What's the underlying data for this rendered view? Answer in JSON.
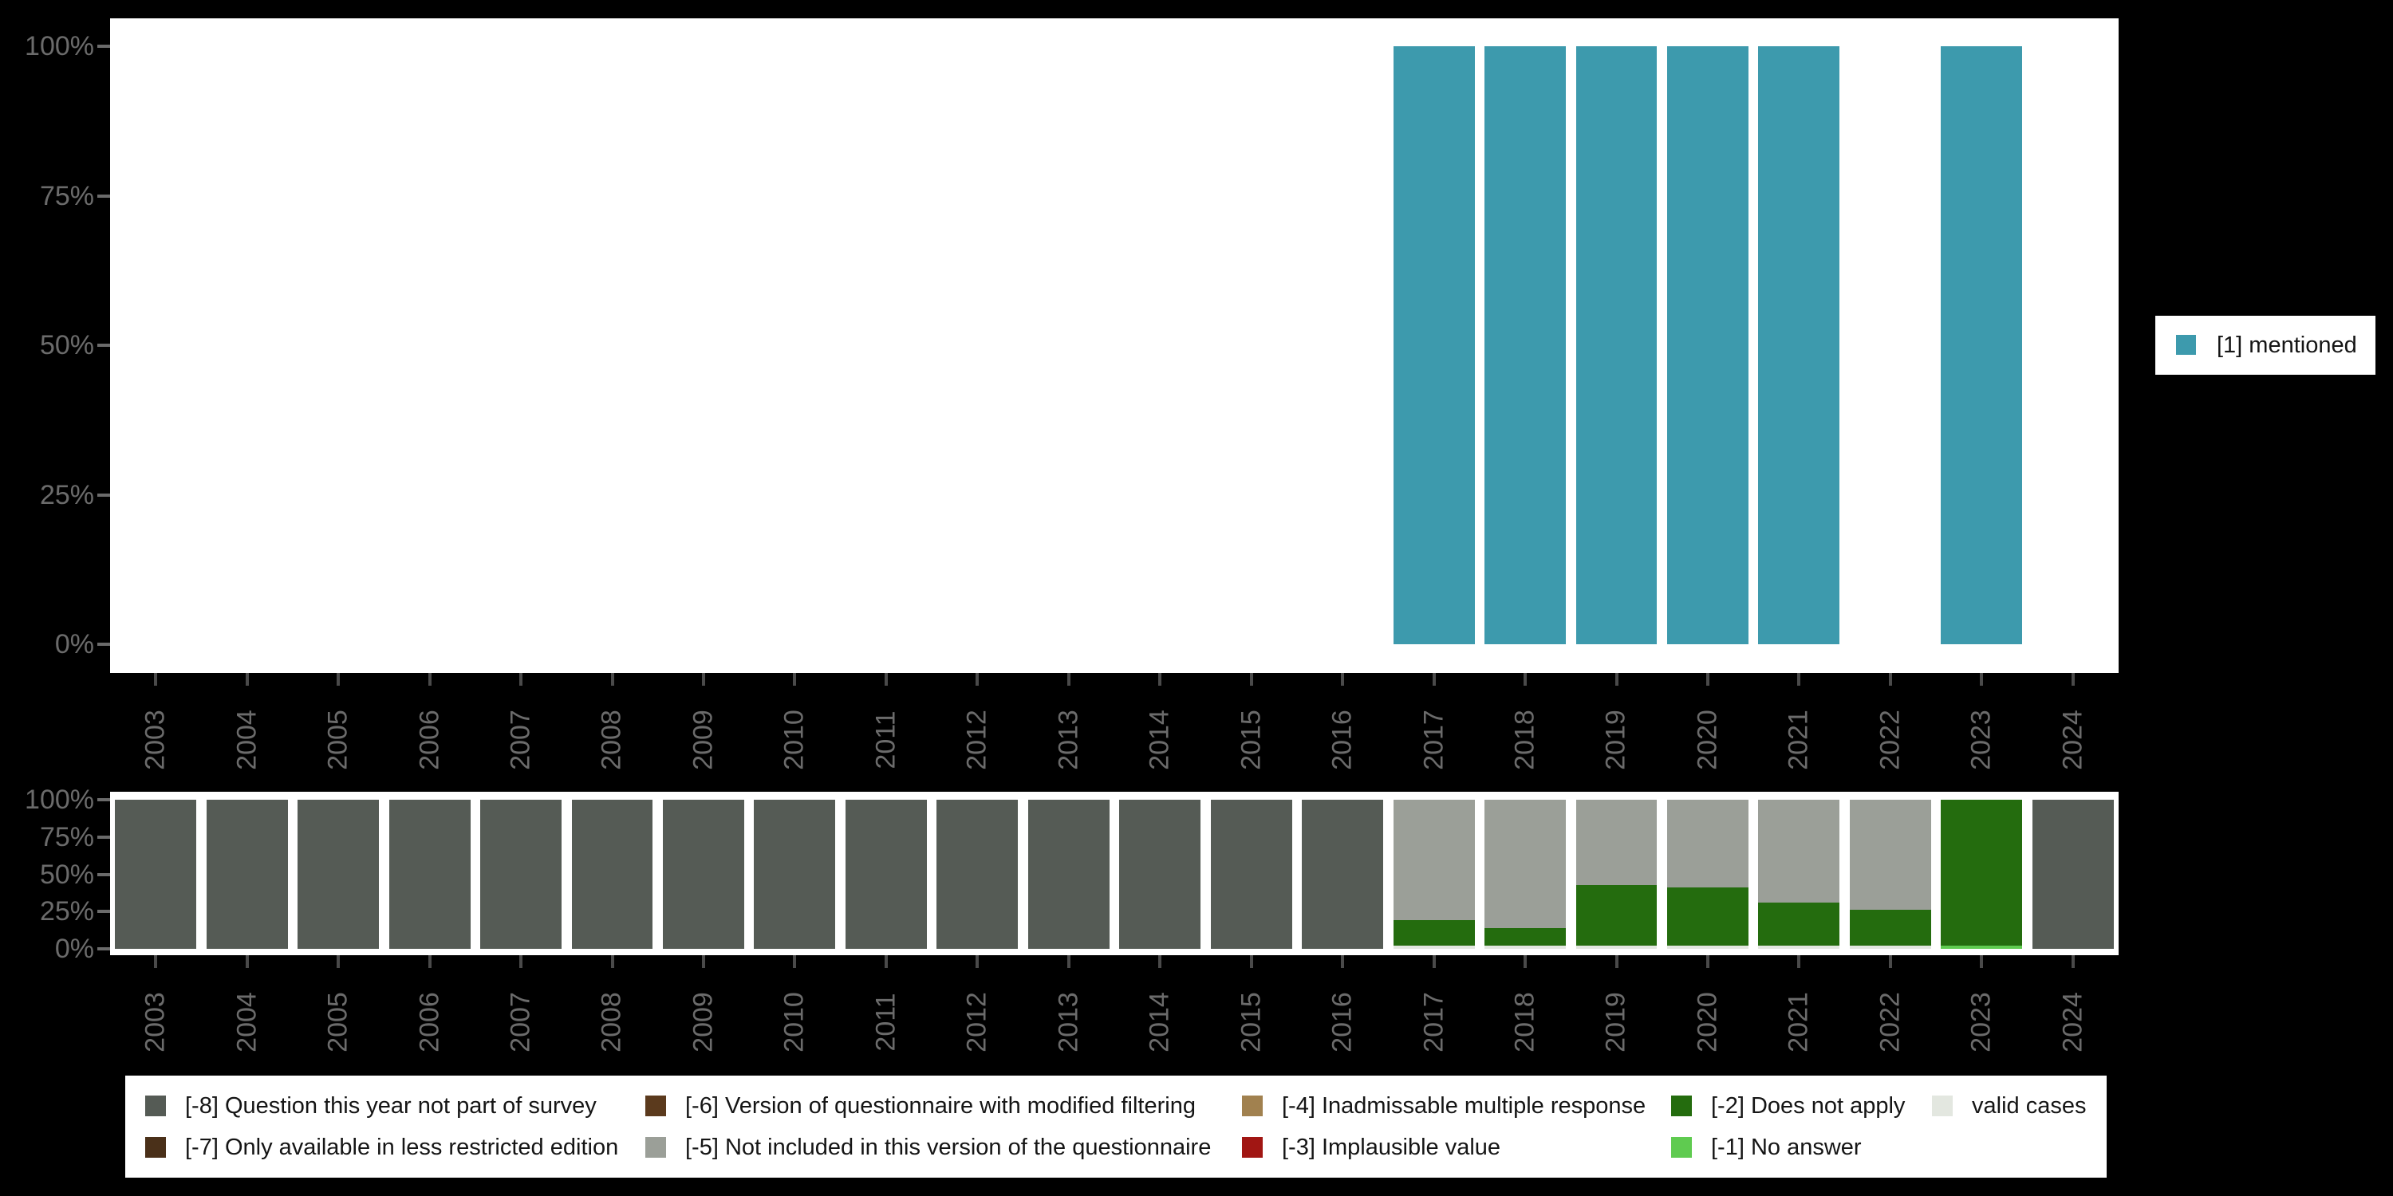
{
  "colors": {
    "background": "#000000",
    "plot_background": "#ffffff",
    "axis_label": "#6b6b6b",
    "axis_tick": "#4a4a4a",
    "legend_text": "#151515",
    "mentioned": "#3d9aad",
    "m8": "#555b55",
    "m7": "#4a3019",
    "m6": "#5b3a1d",
    "m5": "#9b9f98",
    "m4": "#a1814f",
    "m3": "#a11613",
    "m2": "#246c0e",
    "m1": "#5fcb50",
    "valid": "#e3e7e0"
  },
  "legend_right": {
    "label": "[1] mentioned",
    "color_key": "mentioned"
  },
  "legend_bottom": {
    "items": [
      {
        "label": "[-8] Question this year not part of survey",
        "color_key": "m8"
      },
      {
        "label": "[-7] Only available in less restricted edition",
        "color_key": "m7"
      },
      {
        "label": "[-6] Version of questionnaire with modified filtering",
        "color_key": "m6"
      },
      {
        "label": "[-5] Not included in this version of the questionnaire",
        "color_key": "m5"
      },
      {
        "label": "[-4] Inadmissable multiple response",
        "color_key": "m4"
      },
      {
        "label": "[-3] Implausible value",
        "color_key": "m3"
      },
      {
        "label": "[-2] Does not apply",
        "color_key": "m2"
      },
      {
        "label": "[-1] No answer",
        "color_key": "m1"
      },
      {
        "label": "valid cases",
        "color_key": "valid"
      }
    ]
  },
  "chart_data": [
    {
      "id": "mentioned-by-year",
      "type": "bar",
      "stacked": false,
      "categories": [
        "2003",
        "2004",
        "2005",
        "2006",
        "2007",
        "2008",
        "2009",
        "2010",
        "2011",
        "2012",
        "2013",
        "2014",
        "2015",
        "2016",
        "2017",
        "2018",
        "2019",
        "2020",
        "2021",
        "2022",
        "2023",
        "2024"
      ],
      "series": [
        {
          "name": "[1] mentioned",
          "color_key": "mentioned",
          "values": [
            0,
            0,
            0,
            0,
            0,
            0,
            0,
            0,
            0,
            0,
            0,
            0,
            0,
            0,
            100,
            100,
            100,
            100,
            100,
            0,
            100,
            0
          ]
        }
      ],
      "yticks": [
        "0%",
        "25%",
        "50%",
        "75%",
        "100%"
      ],
      "ylim": [
        0,
        100
      ],
      "xlabel": "",
      "ylabel": "",
      "grid": false,
      "legend_position": "right"
    },
    {
      "id": "missing-values-by-year",
      "type": "bar",
      "stacked": true,
      "categories": [
        "2003",
        "2004",
        "2005",
        "2006",
        "2007",
        "2008",
        "2009",
        "2010",
        "2011",
        "2012",
        "2013",
        "2014",
        "2015",
        "2016",
        "2017",
        "2018",
        "2019",
        "2020",
        "2021",
        "2022",
        "2023",
        "2024"
      ],
      "series": [
        {
          "name": "valid cases",
          "color_key": "valid",
          "values": [
            0,
            0,
            0,
            0,
            0,
            0,
            0,
            0,
            0,
            0,
            0,
            0,
            0,
            0,
            2,
            2,
            2,
            2,
            2,
            2,
            0,
            0
          ]
        },
        {
          "name": "[-1] No answer",
          "color_key": "m1",
          "values": [
            0,
            0,
            0,
            0,
            0,
            0,
            0,
            0,
            0,
            0,
            0,
            0,
            0,
            0,
            0,
            0,
            0,
            0,
            0,
            0,
            2,
            0
          ]
        },
        {
          "name": "[-2] Does not apply",
          "color_key": "m2",
          "values": [
            0,
            0,
            0,
            0,
            0,
            0,
            0,
            0,
            0,
            0,
            0,
            0,
            0,
            0,
            17,
            12,
            41,
            39,
            29,
            24,
            98,
            0
          ]
        },
        {
          "name": "[-5] Not included in this version of the questionnaire",
          "color_key": "m5",
          "values": [
            0,
            0,
            0,
            0,
            0,
            0,
            0,
            0,
            0,
            0,
            0,
            0,
            0,
            0,
            81,
            86,
            57,
            59,
            69,
            74,
            0,
            0
          ]
        },
        {
          "name": "[-8] Question this year not part of survey",
          "color_key": "m8",
          "values": [
            100,
            100,
            100,
            100,
            100,
            100,
            100,
            100,
            100,
            100,
            100,
            100,
            100,
            100,
            0,
            0,
            0,
            0,
            0,
            0,
            0,
            100
          ]
        },
        {
          "name": "[-7] Only available in less restricted edition",
          "color_key": "m7",
          "values": [
            0,
            0,
            0,
            0,
            0,
            0,
            0,
            0,
            0,
            0,
            0,
            0,
            0,
            0,
            0,
            0,
            0,
            0,
            0,
            0,
            0,
            0
          ]
        },
        {
          "name": "[-6] Version of questionnaire with modified filtering",
          "color_key": "m6",
          "values": [
            0,
            0,
            0,
            0,
            0,
            0,
            0,
            0,
            0,
            0,
            0,
            0,
            0,
            0,
            0,
            0,
            0,
            0,
            0,
            0,
            0,
            0
          ]
        },
        {
          "name": "[-4] Inadmissable multiple response",
          "color_key": "m4",
          "values": [
            0,
            0,
            0,
            0,
            0,
            0,
            0,
            0,
            0,
            0,
            0,
            0,
            0,
            0,
            0,
            0,
            0,
            0,
            0,
            0,
            0,
            0
          ]
        },
        {
          "name": "[-3] Implausible value",
          "color_key": "m3",
          "values": [
            0,
            0,
            0,
            0,
            0,
            0,
            0,
            0,
            0,
            0,
            0,
            0,
            0,
            0,
            0,
            0,
            0,
            0,
            0,
            0,
            0,
            0
          ]
        }
      ],
      "yticks": [
        "0%",
        "25%",
        "50%",
        "75%",
        "100%"
      ],
      "ylim": [
        0,
        100
      ],
      "xlabel": "",
      "ylabel": "",
      "grid": false,
      "legend_position": "bottom"
    }
  ]
}
